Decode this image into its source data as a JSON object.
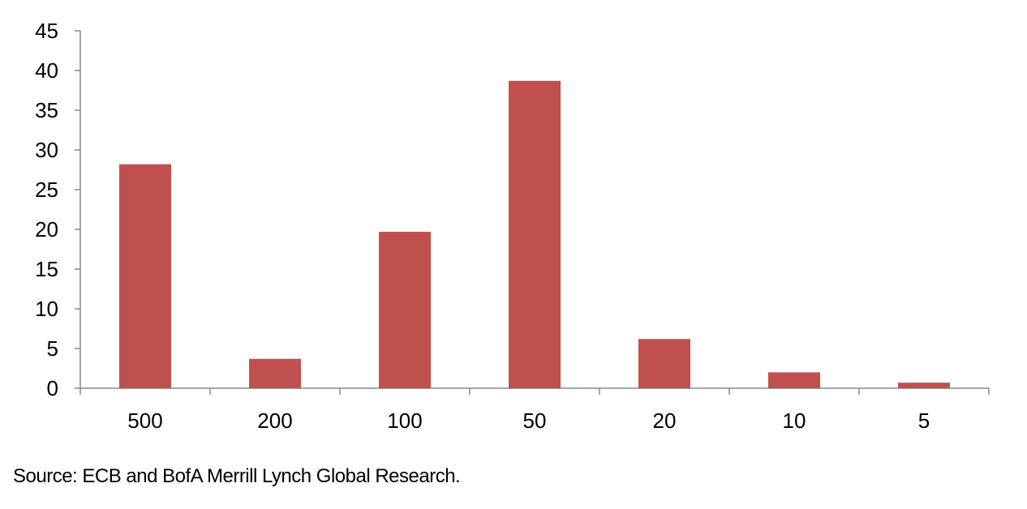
{
  "chart_data": {
    "type": "bar",
    "categories": [
      "500",
      "200",
      "100",
      "50",
      "20",
      "10",
      "5"
    ],
    "values": [
      28.2,
      3.7,
      19.7,
      38.7,
      6.2,
      2.0,
      0.7
    ],
    "title": "",
    "xlabel": "",
    "ylabel": "",
    "ylim": [
      0,
      45
    ],
    "yticks": [
      "0",
      "5",
      "10",
      "15",
      "20",
      "25",
      "30",
      "35",
      "40",
      "45"
    ],
    "grid": false,
    "legend": "none",
    "bar_color": "#C0504D",
    "axis_color": "#888888"
  },
  "source": "Source:  ECB and BofA Merrill Lynch Global Research."
}
